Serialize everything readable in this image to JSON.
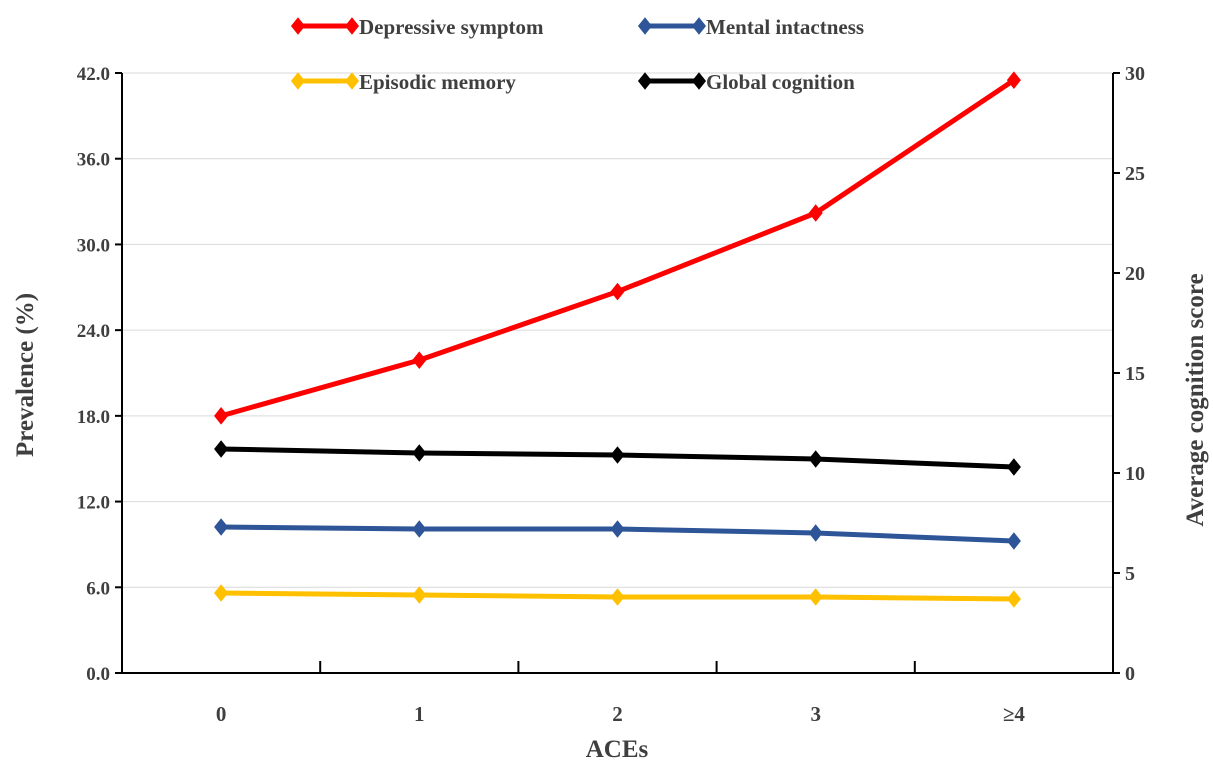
{
  "chart_data": {
    "type": "line",
    "categories": [
      "0",
      "1",
      "2",
      "3",
      "≥4"
    ],
    "xlabel": "ACEs",
    "ylabel_left": "Prevalence (%)",
    "ylabel_right": "Average cognition score",
    "ylim_left": [
      0,
      42
    ],
    "ylim_right": [
      0,
      30
    ],
    "yticks_left": [
      "0.0",
      "6.0",
      "12.0",
      "18.0",
      "24.0",
      "30.0",
      "36.0",
      "42.0"
    ],
    "yticks_right": [
      "0",
      "5",
      "10",
      "15",
      "20",
      "25",
      "30"
    ],
    "grid": true,
    "legend_position": "top",
    "series": [
      {
        "name": "Depressive symptom",
        "axis": "left",
        "color": "#ff0000",
        "values": [
          18.0,
          21.9,
          26.7,
          32.2,
          41.5
        ]
      },
      {
        "name": "Mental intactness",
        "axis": "right",
        "color": "#2e5597",
        "values": [
          7.3,
          7.2,
          7.2,
          7.0,
          6.6
        ]
      },
      {
        "name": "Episodic memory",
        "axis": "right",
        "color": "#ffc000",
        "values": [
          4.0,
          3.9,
          3.8,
          3.8,
          3.7
        ]
      },
      {
        "name": "Global cognition",
        "axis": "right",
        "color": "#000000",
        "values": [
          11.2,
          11.0,
          10.9,
          10.7,
          10.3
        ]
      }
    ]
  }
}
